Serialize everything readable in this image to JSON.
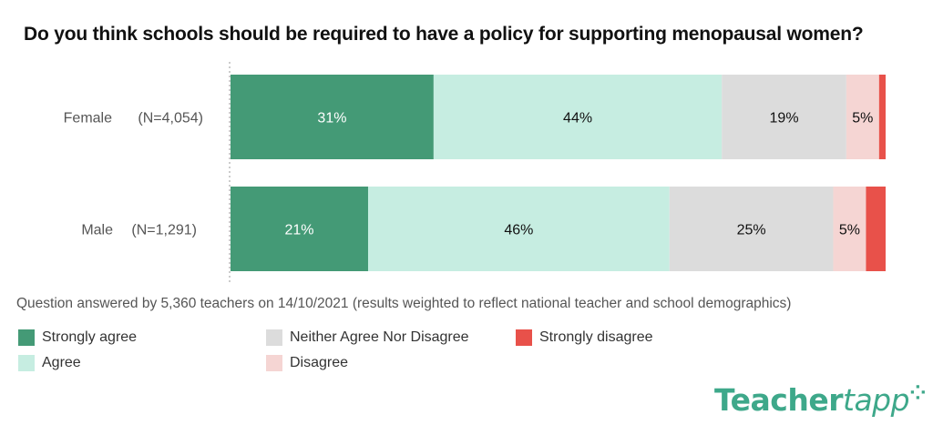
{
  "chart_data": {
    "type": "bar",
    "orientation": "horizontal-stacked-100",
    "title": "Do you think schools should be required to have a policy for supporting menopausal women?",
    "categories": [
      "Female",
      "Male"
    ],
    "category_counts": [
      "(N=4,054)",
      "(N=1,291)"
    ],
    "series": [
      {
        "name": "Strongly agree",
        "color": "#449a76",
        "label_color": "#ffffff",
        "values": [
          31,
          21
        ],
        "labels": [
          "31%",
          "21%"
        ]
      },
      {
        "name": "Agree",
        "color": "#c6ede1",
        "label_color": "#111111",
        "values": [
          44,
          46
        ],
        "labels": [
          "44%",
          "46%"
        ]
      },
      {
        "name": "Neither Agree Nor Disagree",
        "color": "#dcdcdc",
        "label_color": "#111111",
        "values": [
          19,
          25
        ],
        "labels": [
          "19%",
          "25%"
        ]
      },
      {
        "name": "Disagree",
        "color": "#f5d5d3",
        "label_color": "#111111",
        "values": [
          5,
          5
        ],
        "labels": [
          "5%",
          "5%"
        ]
      },
      {
        "name": "Strongly disagree",
        "color": "#e8514a",
        "label_color": "#ffffff",
        "values": [
          1,
          3
        ],
        "labels": [
          "",
          ""
        ]
      }
    ],
    "xlim": [
      0,
      100
    ],
    "grid": false,
    "legend_position": "bottom-left"
  },
  "note": "Question answered by 5,360 teachers on 14/10/2021 (results weighted to reflect national teacher and school demographics)",
  "logo": {
    "part1": "Teacher",
    "part2": "tapp"
  }
}
